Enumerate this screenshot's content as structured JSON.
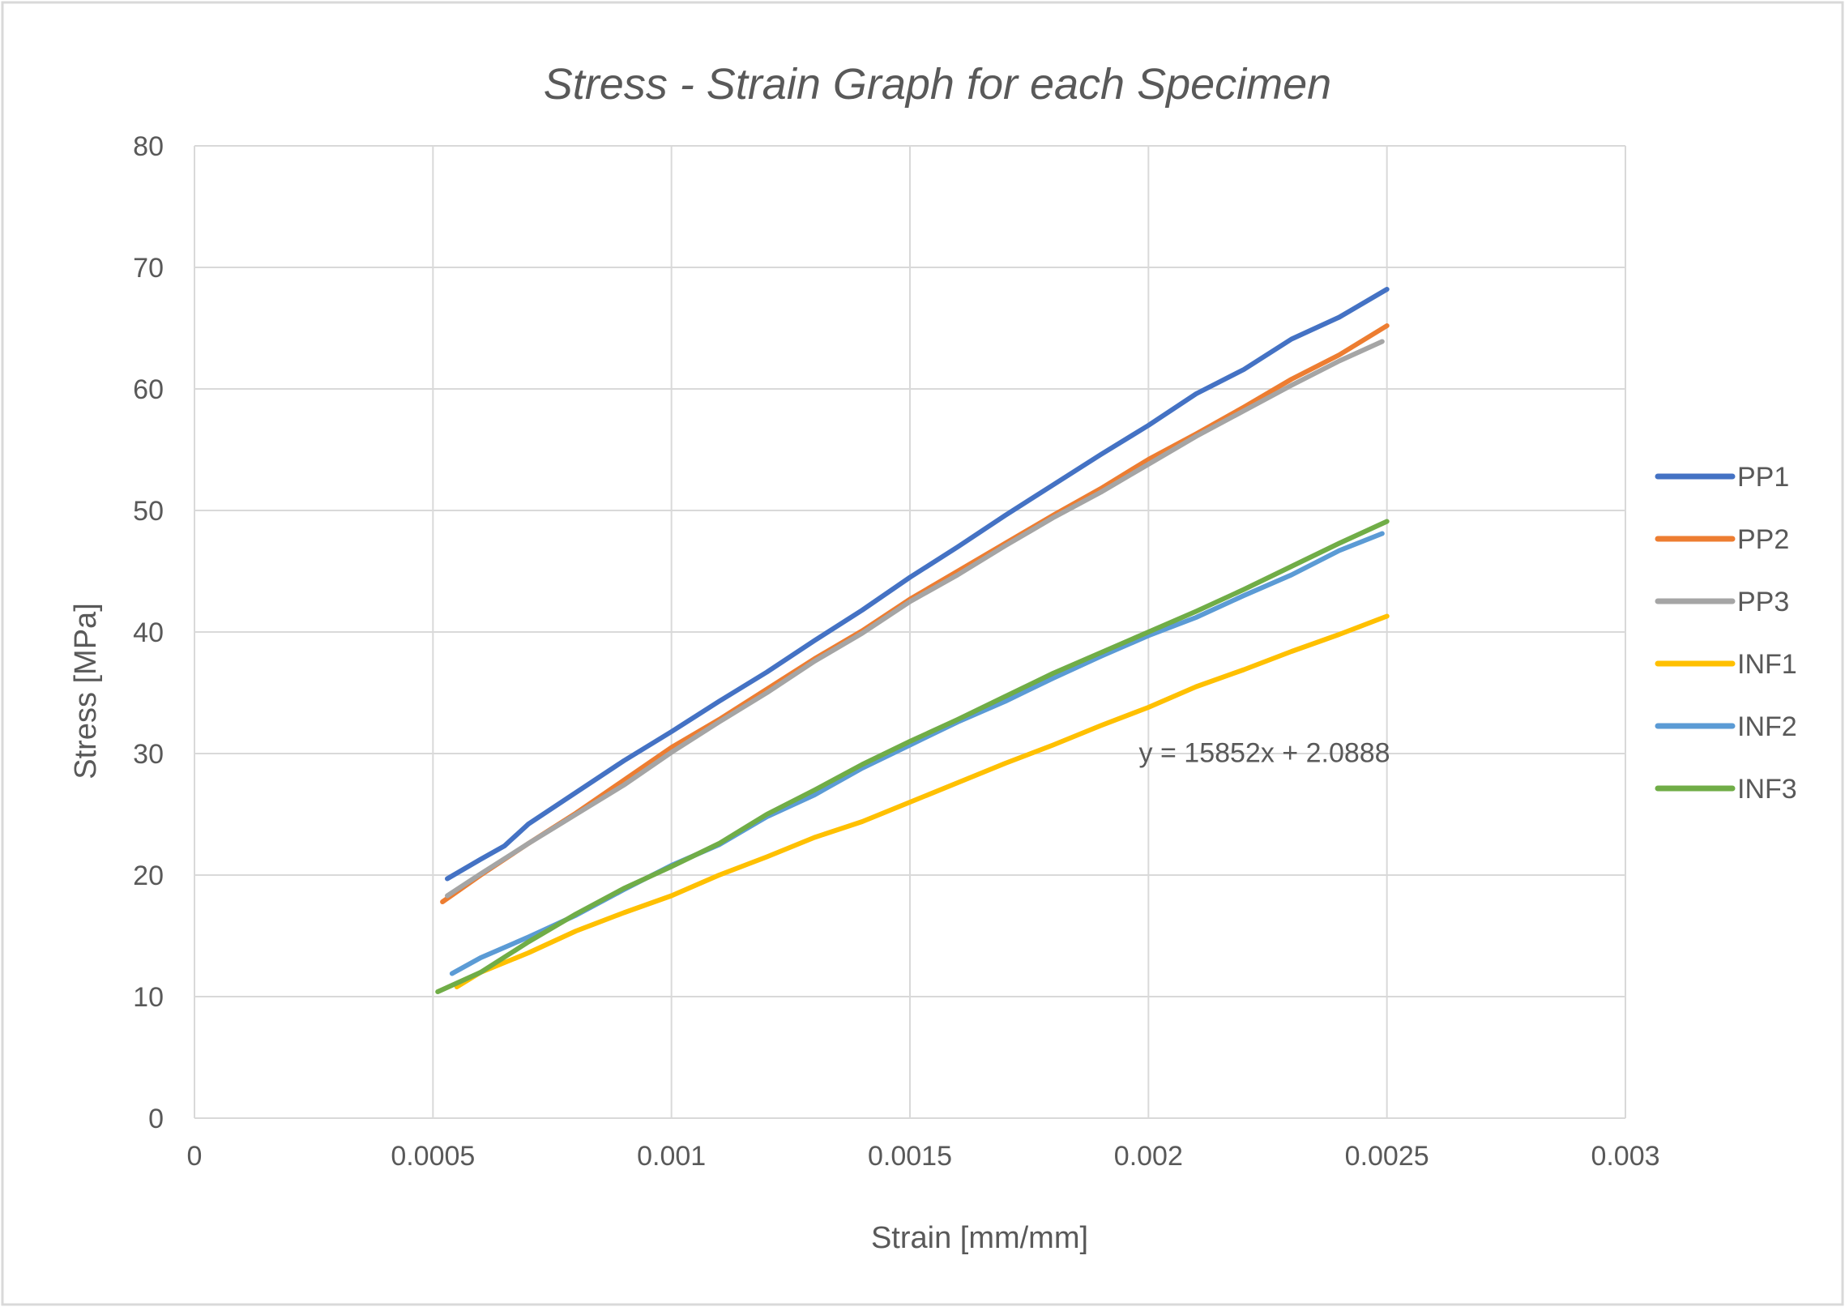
{
  "chart_data": {
    "type": "line",
    "title": "Stress - Strain Graph for each Specimen",
    "xlabel": "Strain [mm/mm]",
    "ylabel": "Stress [MPa]",
    "xlim": [
      0,
      0.003
    ],
    "ylim": [
      0,
      80
    ],
    "grid": true,
    "legend_position": "right",
    "x_ticks": [
      {
        "value": 0,
        "label": "0"
      },
      {
        "value": 0.0005,
        "label": "0.0005"
      },
      {
        "value": 0.001,
        "label": "0.001"
      },
      {
        "value": 0.0015,
        "label": "0.0015"
      },
      {
        "value": 0.002,
        "label": "0.002"
      },
      {
        "value": 0.0025,
        "label": "0.0025"
      },
      {
        "value": 0.003,
        "label": "0.003"
      }
    ],
    "y_ticks": [
      {
        "value": 0,
        "label": "0"
      },
      {
        "value": 10,
        "label": "10"
      },
      {
        "value": 20,
        "label": "20"
      },
      {
        "value": 30,
        "label": "30"
      },
      {
        "value": 40,
        "label": "40"
      },
      {
        "value": 50,
        "label": "50"
      },
      {
        "value": 60,
        "label": "60"
      },
      {
        "value": 70,
        "label": "70"
      },
      {
        "value": 80,
        "label": "80"
      }
    ],
    "series": [
      {
        "name": "PP1",
        "color": "#4472C4",
        "x": [
          0.00053,
          0.0006,
          0.00065,
          0.0007,
          0.0008,
          0.0009,
          0.001,
          0.0011,
          0.0012,
          0.0013,
          0.0014,
          0.0015,
          0.0016,
          0.0017,
          0.0018,
          0.0019,
          0.002,
          0.0021,
          0.0022,
          0.0023,
          0.0024,
          0.0025
        ],
        "y": [
          19.7,
          21.3,
          22.4,
          24.2,
          26.8,
          29.4,
          31.8,
          34.3,
          36.7,
          39.3,
          41.8,
          44.5,
          47.0,
          49.6,
          52.1,
          54.6,
          57.0,
          59.6,
          61.6,
          64.1,
          65.9,
          68.2
        ]
      },
      {
        "name": "PP2",
        "color": "#ED7D31",
        "x": [
          0.00052,
          0.0006,
          0.0007,
          0.0008,
          0.0009,
          0.001,
          0.0011,
          0.0012,
          0.0013,
          0.0014,
          0.0015,
          0.0016,
          0.0017,
          0.0018,
          0.0019,
          0.002,
          0.0021,
          0.0022,
          0.0023,
          0.0024,
          0.0025
        ],
        "y": [
          17.8,
          20.0,
          22.6,
          25.1,
          27.8,
          30.5,
          32.8,
          35.3,
          37.8,
          40.1,
          42.7,
          45.0,
          47.3,
          49.6,
          51.8,
          54.2,
          56.3,
          58.5,
          60.8,
          62.8,
          65.2
        ]
      },
      {
        "name": "PP3",
        "color": "#A5A5A5",
        "x": [
          0.00053,
          0.0006,
          0.0007,
          0.0008,
          0.0009,
          0.001,
          0.0011,
          0.0012,
          0.0013,
          0.0014,
          0.0015,
          0.0016,
          0.0017,
          0.0018,
          0.0019,
          0.002,
          0.0021,
          0.0022,
          0.0023,
          0.0024,
          0.00249
        ],
        "y": [
          18.3,
          20.1,
          22.6,
          25.0,
          27.4,
          30.1,
          32.6,
          35.0,
          37.6,
          39.9,
          42.5,
          44.7,
          47.1,
          49.4,
          51.5,
          53.8,
          56.1,
          58.2,
          60.3,
          62.3,
          63.9
        ]
      },
      {
        "name": "INF1",
        "color": "#FFC000",
        "x": [
          0.00055,
          0.0006,
          0.0007,
          0.0008,
          0.0009,
          0.001,
          0.0011,
          0.0012,
          0.0013,
          0.0014,
          0.0015,
          0.0016,
          0.0017,
          0.0018,
          0.0019,
          0.002,
          0.0021,
          0.0022,
          0.0023,
          0.0024,
          0.0025
        ],
        "y": [
          10.8,
          12.0,
          13.6,
          15.4,
          16.9,
          18.3,
          20.0,
          21.5,
          23.1,
          24.4,
          26.0,
          27.6,
          29.2,
          30.7,
          32.3,
          33.8,
          35.5,
          36.9,
          38.4,
          39.8,
          41.3
        ]
      },
      {
        "name": "INF2",
        "color": "#5B9BD5",
        "x": [
          0.00054,
          0.0006,
          0.0007,
          0.0008,
          0.0009,
          0.001,
          0.0011,
          0.0012,
          0.0013,
          0.0014,
          0.0015,
          0.0016,
          0.0017,
          0.0018,
          0.0019,
          0.002,
          0.0021,
          0.0022,
          0.0023,
          0.0024,
          0.00249
        ],
        "y": [
          11.9,
          13.2,
          14.9,
          16.7,
          18.8,
          20.8,
          22.5,
          24.8,
          26.6,
          28.8,
          30.7,
          32.6,
          34.3,
          36.2,
          38.0,
          39.7,
          41.2,
          43.0,
          44.7,
          46.7,
          48.1
        ]
      },
      {
        "name": "INF3",
        "color": "#70AD47",
        "x": [
          0.00051,
          0.0006,
          0.0007,
          0.0008,
          0.0009,
          0.001,
          0.0011,
          0.0012,
          0.0013,
          0.0014,
          0.0015,
          0.0016,
          0.0017,
          0.0018,
          0.0019,
          0.002,
          0.0021,
          0.0022,
          0.0023,
          0.0024,
          0.0025
        ],
        "y": [
          10.4,
          12.0,
          14.5,
          16.8,
          18.9,
          20.7,
          22.6,
          25.0,
          27.0,
          29.1,
          31.0,
          32.8,
          34.7,
          36.6,
          38.3,
          40.0,
          41.7,
          43.5,
          45.4,
          47.3,
          49.1
        ]
      }
    ],
    "annotations": [
      {
        "text": "y = 15852x + 2.0888",
        "x": 0.00198,
        "y": 29.3
      }
    ]
  }
}
